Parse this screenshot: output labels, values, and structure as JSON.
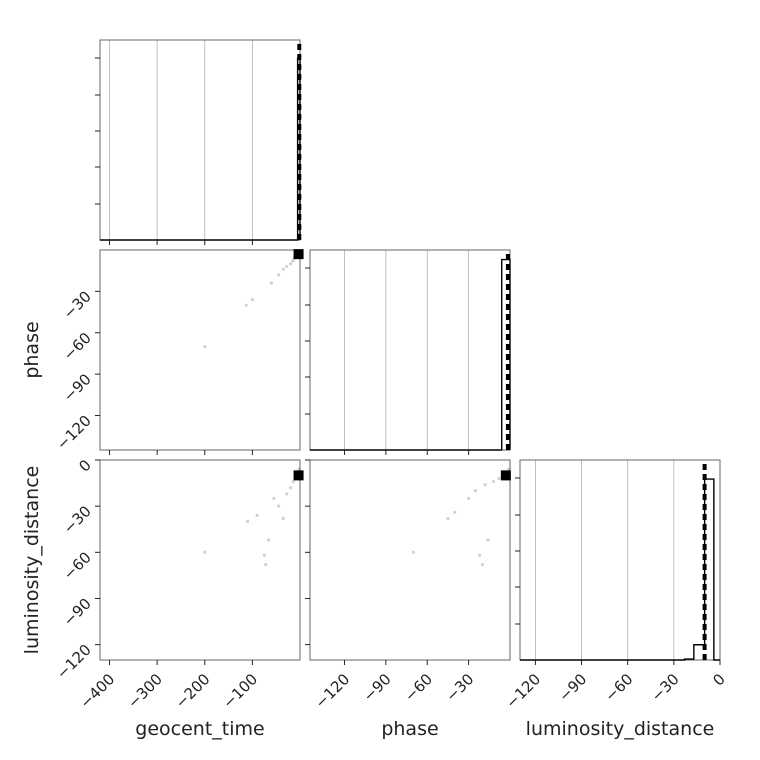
{
  "chart_data": {
    "type": "scatter",
    "title": "",
    "parameters": [
      "geocent_time",
      "phase",
      "luminosity_distance"
    ],
    "labels": {
      "geocent_time": "geocent_time",
      "phase": "phase",
      "luminosity_distance": "luminosity_distance"
    },
    "ranges": {
      "geocent_time": [
        -420,
        0
      ],
      "phase": [
        -145,
        0
      ],
      "luminosity_distance": [
        -130,
        0
      ]
    },
    "ticks": {
      "geocent_time": [
        -400,
        -300,
        -200,
        -100
      ],
      "phase": [
        -120,
        -90,
        -60,
        -30
      ],
      "phase_row": [
        -120,
        -90,
        -60,
        -30
      ],
      "luminosity_distance": [
        -120,
        -90,
        -60,
        -30,
        0
      ],
      "luminosity_distance_row": [
        -120,
        -90,
        -60,
        -30,
        0
      ]
    },
    "histograms": {
      "geocent_time": {
        "edges": [
          -420,
          -399,
          -378,
          -357,
          -336,
          -315,
          -294,
          -273,
          -252,
          -231,
          -210,
          -189,
          -168,
          -147,
          -126,
          -105,
          -84,
          -63,
          -42,
          -21,
          -5,
          0
        ],
        "counts": [
          0,
          0,
          0,
          0,
          0,
          0,
          0,
          0,
          0,
          0,
          0,
          0,
          0,
          0,
          0,
          0,
          0,
          0,
          0,
          0,
          1.0
        ],
        "ylim": [
          0,
          1.1
        ]
      },
      "phase": {
        "edges": [
          -145,
          -6,
          0
        ],
        "counts": [
          0,
          1.0
        ],
        "ylim": [
          0,
          1.05
        ]
      },
      "luminosity_distance": {
        "edges": [
          -130,
          -23,
          -17,
          -10,
          -4,
          0
        ],
        "counts": [
          0,
          0.005,
          0.08,
          0.95,
          0
        ],
        "ylim": [
          0,
          1.05
        ]
      }
    },
    "truths": {
      "geocent_time": -1.5,
      "phase": -1.5,
      "luminosity_distance": -10
    },
    "samples": {
      "geocent_time_vs_phase": [
        [
          -200,
          -70
        ],
        [
          -113,
          -40
        ],
        [
          -100,
          -36
        ],
        [
          -60,
          -24
        ],
        [
          -45,
          -18
        ],
        [
          -35,
          -14
        ],
        [
          -28,
          -12
        ],
        [
          -20,
          -10
        ],
        [
          -15,
          -8
        ],
        [
          -12,
          -6
        ],
        [
          -8,
          -4
        ],
        [
          -6,
          -3
        ],
        [
          -4,
          -2
        ],
        [
          -2,
          -1
        ]
      ],
      "geocent_time_vs_luminosity_distance": [
        [
          -200,
          -60
        ],
        [
          -110,
          -40
        ],
        [
          -90,
          -36
        ],
        [
          -75,
          -62
        ],
        [
          -72,
          -68
        ],
        [
          -66,
          -52
        ],
        [
          -55,
          -25
        ],
        [
          -45,
          -30
        ],
        [
          -35,
          -38
        ],
        [
          -28,
          -22
        ],
        [
          -20,
          -18
        ],
        [
          -14,
          -14
        ],
        [
          -10,
          -12
        ],
        [
          -6,
          -10
        ],
        [
          -4,
          -8
        ],
        [
          -2,
          -6
        ]
      ],
      "phase_vs_luminosity_distance": [
        [
          -70,
          -60
        ],
        [
          -45,
          -38
        ],
        [
          -40,
          -34
        ],
        [
          -22,
          -62
        ],
        [
          -20,
          -68
        ],
        [
          -16,
          -52
        ],
        [
          -30,
          -25
        ],
        [
          -25,
          -20
        ],
        [
          -18,
          -16
        ],
        [
          -12,
          -14
        ],
        [
          -8,
          -12
        ],
        [
          -5,
          -10
        ],
        [
          -3,
          -8
        ],
        [
          -1,
          -6
        ]
      ]
    },
    "cores": {
      "geocent_time_vs_phase": [
        -3,
        -3
      ],
      "geocent_time_vs_luminosity_distance": [
        -3,
        -10
      ],
      "phase_vs_luminosity_distance": [
        -3,
        -10
      ]
    }
  }
}
